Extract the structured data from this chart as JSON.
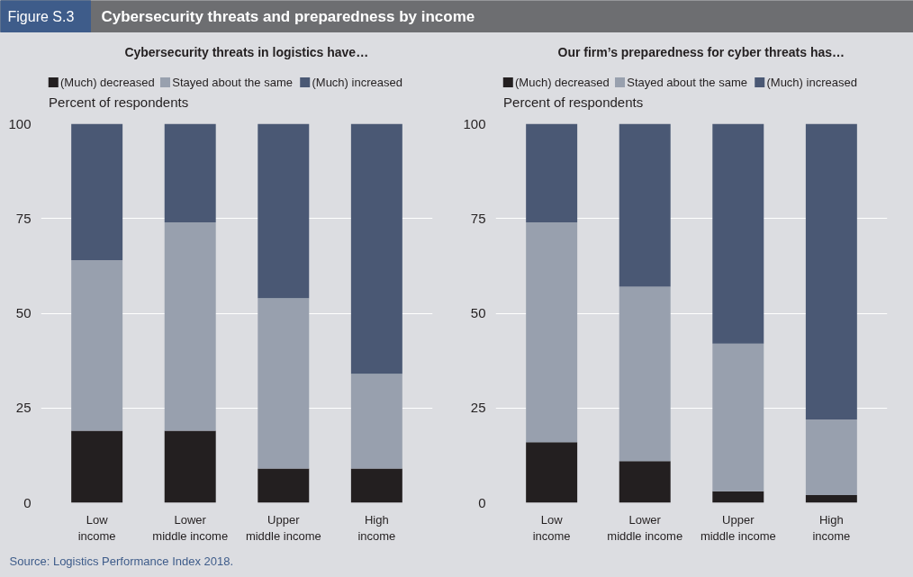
{
  "chart_data": [
    {
      "type": "other",
      "title": "Cybersecurity threats and preparedness by income",
      "annotations": [
        "Figure S.3",
        "Source: Logistics Performance Index 2018."
      ]
    },
    {
      "type": "bar",
      "stacked": true,
      "title": "Cybersecurity threats in logistics have…",
      "ylabel": "Percent of respondents",
      "categories": [
        "Low\nincome",
        "Lower\nmiddle income",
        "Upper\nmiddle income",
        "High\nincome"
      ],
      "series": [
        {
          "name": "(Much) decreased",
          "color": "#231f20",
          "values": [
            19,
            19,
            9,
            9
          ]
        },
        {
          "name": "Stayed about the same",
          "color": "#98a0ae",
          "values": [
            45,
            55,
            45,
            25
          ]
        },
        {
          "name": "(Much) increased",
          "color": "#4a5874",
          "values": [
            36,
            26,
            46,
            66
          ]
        }
      ],
      "ylim": [
        0,
        100
      ],
      "yticks": [
        0,
        25,
        50,
        75,
        100
      ],
      "grid": "y",
      "legend": "top"
    },
    {
      "type": "bar",
      "stacked": true,
      "title": "Our firm’s preparedness for cyber threats has…",
      "ylabel": "Percent of respondents",
      "categories": [
        "Low\nincome",
        "Lower\nmiddle income",
        "Upper\nmiddle income",
        "High\nincome"
      ],
      "series": [
        {
          "name": "(Much) decreased",
          "color": "#231f20",
          "values": [
            16,
            11,
            3,
            2
          ]
        },
        {
          "name": "Stayed about the same",
          "color": "#98a0ae",
          "values": [
            58,
            46,
            39,
            20
          ]
        },
        {
          "name": "(Much) increased",
          "color": "#4a5874",
          "values": [
            26,
            43,
            58,
            78
          ]
        }
      ],
      "ylim": [
        0,
        100
      ],
      "yticks": [
        0,
        25,
        50,
        75,
        100
      ],
      "grid": "y",
      "legend": "top"
    }
  ]
}
